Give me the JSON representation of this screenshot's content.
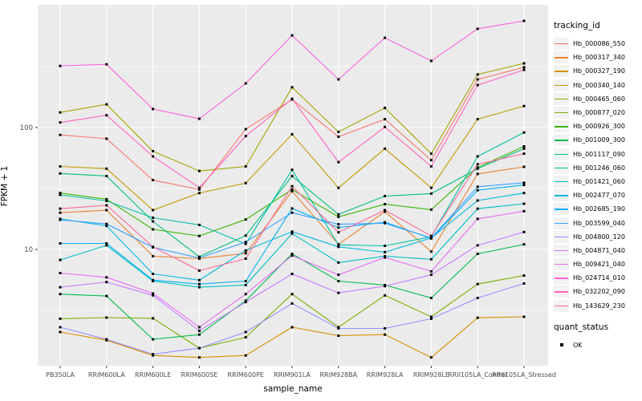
{
  "figure": {
    "x_axis_title": "sample_name",
    "y_axis_title": "FPKM + 1",
    "legend": {
      "tracking_title": "tracking_id",
      "quant_title": "quant_status",
      "quant_items": [
        {
          "label": "OK",
          "marker": "black-filled-square"
        }
      ]
    }
  },
  "chart_data": {
    "type": "line",
    "title": "",
    "xlabel": "sample_name",
    "ylabel": "FPKM + 1",
    "x_scale": "categorical",
    "y_scale": "log10",
    "ylim": [
      1.1,
      900
    ],
    "y_major_ticks": [
      10,
      100
    ],
    "y_minor_gridlines": [
      3.16,
      31.6,
      316
    ],
    "grid": "white major and minor on grey panel",
    "panel_bg": "#EBEBEB",
    "grid_color": "#FFFFFF",
    "tick_label_color": "#4D4D4D",
    "point_marker": "small black filled square",
    "legend_position": "right",
    "categories": [
      "PB350LA",
      "RRIM600LA",
      "RRIM600LE",
      "RRIM600SE",
      "RRIM600PE",
      "RRIM901LA",
      "RRIM928BA",
      "RRIM928LA",
      "RRIM928LE",
      "RRII105LA_Control",
      "RRII105LA_Stressed"
    ],
    "series": [
      {
        "name": "Hb_000086_550",
        "color": "#F8766D",
        "values": [
          87,
          81,
          37,
          31,
          97,
          170,
          84,
          117,
          54,
          248,
          312
        ]
      },
      {
        "name": "Hb_000317_340",
        "color": "#EA8331",
        "values": [
          20,
          21,
          8.8,
          8.4,
          9.3,
          30,
          11,
          20.4,
          9.6,
          41.6,
          47.6
        ]
      },
      {
        "name": "Hb_000327_190",
        "color": "#D89000",
        "values": [
          2.1,
          1.8,
          1.35,
          1.3,
          1.35,
          2.3,
          1.96,
          2.0,
          1.3,
          2.75,
          2.8
        ]
      },
      {
        "name": "Hb_000340_140",
        "color": "#C09B00",
        "values": [
          48,
          46,
          21,
          29,
          35,
          88,
          32,
          67,
          32,
          117,
          150
        ]
      },
      {
        "name": "Hb_000465_060",
        "color": "#A3A500",
        "values": [
          133,
          155,
          64,
          44,
          48,
          214,
          92,
          145,
          61,
          272,
          336
        ]
      },
      {
        "name": "Hb_000877_020",
        "color": "#7CAE00",
        "values": [
          2.7,
          2.76,
          2.72,
          1.55,
          1.9,
          4.3,
          2.3,
          4.2,
          2.8,
          5.2,
          6.1
        ]
      },
      {
        "name": "Hb_000926_300",
        "color": "#39B600",
        "values": [
          29,
          25.8,
          14.6,
          12.9,
          17.6,
          31,
          18.5,
          23.5,
          21.2,
          47,
          70
        ]
      },
      {
        "name": "Hb_001009_300",
        "color": "#00BB4E",
        "values": [
          4.3,
          4.15,
          1.83,
          2.0,
          3.8,
          9.2,
          5.5,
          5.1,
          4.0,
          9.2,
          11.0
        ]
      },
      {
        "name": "Hb_001117_090",
        "color": "#00BF7D",
        "values": [
          42,
          40,
          17,
          8.7,
          13,
          40,
          19.4,
          27.4,
          28.7,
          46,
          67
        ]
      },
      {
        "name": "Hb_001246_060",
        "color": "#00C1A3",
        "values": [
          28,
          25,
          18.2,
          15.9,
          11.1,
          45,
          10.9,
          10.7,
          12.7,
          58,
          91
        ]
      },
      {
        "name": "Hb_001421_060",
        "color": "#00BFC4",
        "values": [
          8.2,
          10.8,
          5.5,
          4.9,
          5.1,
          13.5,
          7.8,
          8.8,
          8.3,
          21.6,
          23.7
        ]
      },
      {
        "name": "Hb_002477_070",
        "color": "#00BAE0",
        "values": [
          17.8,
          15.6,
          6.3,
          5.6,
          9.8,
          14,
          10.5,
          9.5,
          12.4,
          25.2,
          29
        ]
      },
      {
        "name": "Hb_002685_190",
        "color": "#00B0F6",
        "values": [
          11.2,
          11.2,
          5.6,
          5.2,
          5.5,
          21.7,
          15.1,
          16.7,
          12.3,
          30.6,
          33.8
        ]
      },
      {
        "name": "Hb_003599_040",
        "color": "#35A2FF",
        "values": [
          17.5,
          16.2,
          10.4,
          8.5,
          11.5,
          20,
          16.1,
          16.4,
          12.4,
          32.7,
          35.2
        ]
      },
      {
        "name": "Hb_004800_120",
        "color": "#9590FF",
        "values": [
          2.3,
          1.83,
          1.38,
          1.55,
          2.1,
          3.6,
          2.25,
          2.25,
          2.7,
          4.0,
          5.25
        ]
      },
      {
        "name": "Hb_004871_040",
        "color": "#C77CFF",
        "values": [
          4.9,
          5.4,
          4.2,
          2.15,
          3.7,
          6.3,
          4.4,
          5.0,
          6.2,
          10.8,
          13.9
        ]
      },
      {
        "name": "Hb_009421_040",
        "color": "#E76BF3",
        "values": [
          6.4,
          5.9,
          4.35,
          2.3,
          4.3,
          8.9,
          6.2,
          8.6,
          6.6,
          17.8,
          20.6
        ]
      },
      {
        "name": "Hb_024714_010",
        "color": "#FA62DB",
        "values": [
          320,
          330,
          142,
          118,
          230,
          570,
          248,
          545,
          352,
          645,
          750
        ]
      },
      {
        "name": "Hb_032202_090",
        "color": "#FF62BC",
        "values": [
          110,
          126,
          58,
          32,
          85,
          172,
          52,
          101,
          48,
          223,
          297
        ]
      },
      {
        "name": "Hb_143629_230",
        "color": "#FF6A98",
        "values": [
          21.6,
          23,
          10.5,
          6.7,
          8.4,
          33,
          13.8,
          21,
          12.9,
          50,
          61
        ]
      }
    ]
  }
}
